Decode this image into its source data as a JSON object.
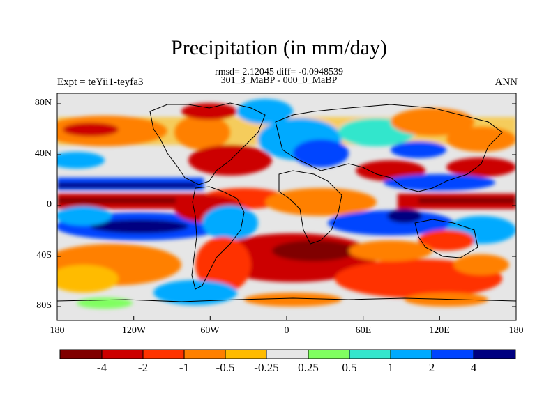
{
  "title": "Precipitation (in mm/day)",
  "subtitle_stats": "rmsd= 2.12045 diff= -0.0948539",
  "subtitle_case": "301_3_MaBP - 000_0_MaBP",
  "left_label": "Expt = teYii1-teyfa3",
  "right_label": "ANN",
  "lat_ticks": [
    "80N",
    "40N",
    "0",
    "40S",
    "80S"
  ],
  "lon_ticks": [
    "180",
    "120W",
    "60W",
    "0",
    "60E",
    "120E",
    "180"
  ],
  "colorbar": {
    "labels": [
      "-4",
      "-2",
      "-1",
      "-0.5",
      "-0.25",
      "0.25",
      "0.5",
      "1",
      "2",
      "4"
    ],
    "colors": [
      "#800000",
      "#cc0000",
      "#ff3300",
      "#ff8000",
      "#ffbb00",
      "#e6e6e6",
      "#80ff60",
      "#33e6cc",
      "#00aaff",
      "#0044ff",
      "#000080"
    ]
  }
}
